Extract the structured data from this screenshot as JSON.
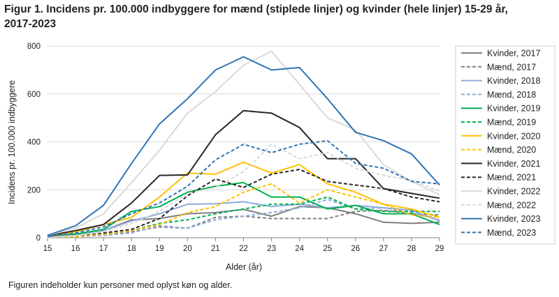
{
  "title": "Figur 1. Incidens pr. 100.000 indbyggere for mænd (stiplede linjer) og kvinder (hele linjer) 15-29 år, 2017-2023",
  "footnote": "Figuren indeholder kun personer med oplyst køn og alder.",
  "chart_data": {
    "type": "line",
    "title": "Figur 1. Incidens pr. 100.000 indbyggere for mænd (stiplede linjer) og kvinder (hele linjer) 15-29 år, 2017-2023",
    "xlabel": "Alder (år)",
    "ylabel": "Incidens pr. 100.000 indbyggere",
    "x": [
      15,
      16,
      17,
      18,
      19,
      20,
      21,
      22,
      23,
      24,
      25,
      26,
      27,
      28,
      29
    ],
    "xlim": [
      15,
      29
    ],
    "ylim": [
      0,
      800
    ],
    "yticks": [
      0,
      200,
      400,
      600,
      800
    ],
    "grid": "horizontal",
    "legend": "right",
    "series": [
      {
        "name": "Kvinder, 2017",
        "color": "#7f7f7f",
        "dashed": false,
        "values": [
          5,
          12,
          30,
          75,
          80,
          100,
          105,
          118,
          90,
          130,
          125,
          100,
          65,
          60,
          65
        ]
      },
      {
        "name": "Mænd, 2017",
        "color": "#7f7f7f",
        "dashed": true,
        "values": [
          2,
          5,
          12,
          25,
          45,
          40,
          85,
          90,
          80,
          80,
          80,
          110,
          115,
          100,
          95
        ]
      },
      {
        "name": "Kvinder, 2018",
        "color": "#8faadc",
        "dashed": false,
        "values": [
          5,
          12,
          30,
          70,
          100,
          140,
          142,
          150,
          130,
          140,
          125,
          135,
          125,
          115,
          70
        ]
      },
      {
        "name": "Mænd, 2018",
        "color": "#8faadc",
        "dashed": true,
        "values": [
          2,
          5,
          10,
          20,
          50,
          40,
          75,
          90,
          105,
          125,
          160,
          120,
          125,
          105,
          75
        ]
      },
      {
        "name": "Kvinder, 2019",
        "color": "#00b050",
        "dashed": false,
        "values": [
          8,
          15,
          35,
          110,
          130,
          190,
          215,
          230,
          170,
          170,
          120,
          135,
          100,
          100,
          55
        ]
      },
      {
        "name": "Mænd, 2019",
        "color": "#00b050",
        "dashed": true,
        "values": [
          2,
          8,
          15,
          30,
          60,
          75,
          100,
          120,
          140,
          140,
          170,
          120,
          110,
          110,
          110
        ]
      },
      {
        "name": "Kvinder, 2020",
        "color": "#ffc000",
        "dashed": false,
        "values": [
          8,
          25,
          55,
          85,
          170,
          270,
          265,
          315,
          270,
          305,
          225,
          190,
          140,
          120,
          85
        ]
      },
      {
        "name": "Mænd, 2020",
        "color": "#ffc000",
        "dashed": true,
        "values": [
          2,
          5,
          15,
          30,
          55,
          105,
          130,
          190,
          225,
          145,
          200,
          170,
          140,
          95,
          85
        ]
      },
      {
        "name": "Kvinder, 2021",
        "color": "#262626",
        "dashed": false,
        "values": [
          8,
          30,
          55,
          145,
          260,
          262,
          430,
          530,
          520,
          460,
          330,
          330,
          205,
          185,
          165
        ]
      },
      {
        "name": "Mænd, 2021",
        "color": "#262626",
        "dashed": true,
        "values": [
          2,
          10,
          20,
          35,
          80,
          175,
          245,
          210,
          265,
          285,
          235,
          220,
          205,
          170,
          150
        ]
      },
      {
        "name": "Kvinder, 2022",
        "color": "#d9d9d9",
        "dashed": false,
        "values": [
          10,
          40,
          100,
          230,
          365,
          520,
          610,
          720,
          778,
          640,
          500,
          450,
          305,
          235,
          180
        ]
      },
      {
        "name": "Mænd, 2022",
        "color": "#d9d9d9",
        "dashed": true,
        "values": [
          2,
          10,
          25,
          60,
          110,
          185,
          210,
          275,
          390,
          330,
          355,
          290,
          260,
          240,
          195
        ]
      },
      {
        "name": "Kvinder, 2023",
        "color": "#2e75b6",
        "dashed": false,
        "values": [
          10,
          50,
          135,
          310,
          475,
          580,
          700,
          755,
          700,
          710,
          580,
          440,
          405,
          350,
          220
        ]
      },
      {
        "name": "Mænd, 2023",
        "color": "#2e75b6",
        "dashed": true,
        "values": [
          5,
          20,
          45,
          100,
          145,
          215,
          325,
          390,
          355,
          390,
          405,
          310,
          290,
          235,
          225
        ]
      }
    ]
  }
}
